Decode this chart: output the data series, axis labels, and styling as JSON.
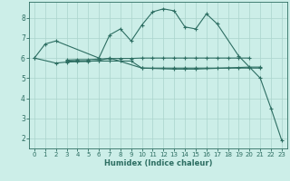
{
  "xlabel": "Humidex (Indice chaleur)",
  "bg_color": "#cceee8",
  "grid_color": "#aad4cc",
  "line_color": "#2d6e62",
  "xlim": [
    -0.5,
    23.5
  ],
  "ylim": [
    1.5,
    8.8
  ],
  "xticks": [
    0,
    1,
    2,
    3,
    4,
    5,
    6,
    7,
    8,
    9,
    10,
    11,
    12,
    13,
    14,
    15,
    16,
    17,
    18,
    19,
    20,
    21,
    22,
    23
  ],
  "yticks": [
    2,
    3,
    4,
    5,
    6,
    7,
    8
  ],
  "series": [
    {
      "x": [
        0,
        1,
        2,
        6,
        7,
        8,
        9,
        10,
        11,
        12,
        13,
        14,
        15,
        16,
        17,
        19,
        21,
        22,
        23
      ],
      "y": [
        6.0,
        6.7,
        6.85,
        6.0,
        7.15,
        7.45,
        6.85,
        7.65,
        8.3,
        8.45,
        8.35,
        7.55,
        7.45,
        8.2,
        7.7,
        6.1,
        5.0,
        3.5,
        1.9
      ]
    },
    {
      "x": [
        0,
        2,
        3,
        4,
        5,
        6,
        7,
        10,
        13,
        14,
        15,
        20,
        21
      ],
      "y": [
        6.0,
        5.75,
        5.8,
        5.82,
        5.83,
        5.88,
        6.0,
        5.5,
        5.45,
        5.45,
        5.45,
        5.55,
        5.55
      ]
    },
    {
      "x": [
        3,
        4,
        5,
        6,
        7,
        8,
        9,
        10,
        11,
        12,
        13,
        14,
        15,
        16,
        17,
        18,
        19,
        20
      ],
      "y": [
        5.9,
        5.92,
        5.92,
        5.95,
        5.97,
        5.98,
        5.98,
        6.0,
        6.0,
        6.0,
        6.0,
        6.0,
        6.0,
        6.0,
        6.0,
        6.0,
        6.0,
        6.0
      ]
    },
    {
      "x": [
        3,
        4,
        5,
        6,
        7,
        8,
        9,
        10,
        11,
        12,
        13,
        14,
        15,
        16,
        17,
        18,
        19,
        20,
        21
      ],
      "y": [
        5.85,
        5.85,
        5.85,
        5.85,
        5.85,
        5.85,
        5.85,
        5.5,
        5.5,
        5.5,
        5.5,
        5.5,
        5.5,
        5.5,
        5.5,
        5.5,
        5.5,
        5.5,
        5.5
      ]
    }
  ]
}
